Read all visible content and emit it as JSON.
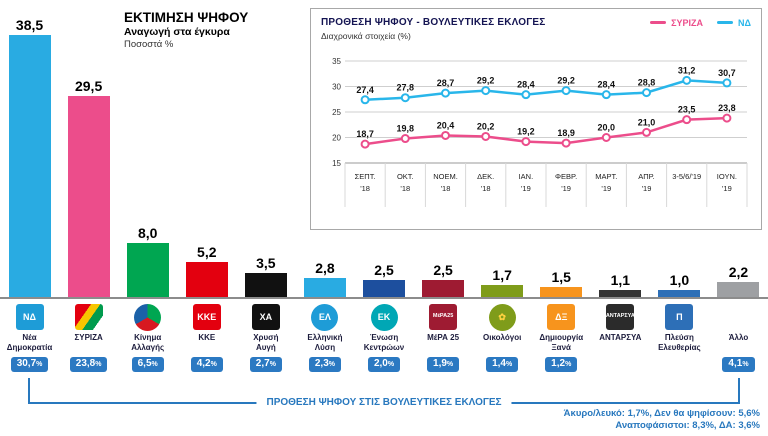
{
  "header": {
    "title": "ΕΚΤΙΜΗΣΗ ΨΗΦΟΥ",
    "subtitle": "Αναγωγή στα έγκυρα",
    "note": "Ποσοστά %"
  },
  "line_panel": {
    "title": "ΠΡΟΘΕΣΗ ΨΗΦΟΥ - ΒΟΥΛΕΥΤΙΚΕΣ ΕΚΛΟΓΕΣ",
    "subtitle": "Διαχρονικά στοιχεία (%)"
  },
  "footer": {
    "bracket_label": "ΠΡΟΘΕΣΗ ΨΗΦΟΥ ΣΤΙΣ ΒΟΥΛΕΥΤΙΚΕΣ ΕΚΛΟΓΕΣ",
    "notes": [
      "Άκυρο/λευκό: 1,7%, Δεν θα ψηφίσουν: 5,6%",
      "Αναποφάσιστοι: 8,3%, ΔΑ: 3,6%"
    ]
  },
  "colors": {
    "badge_blue": "#2b79c2",
    "bracket_blue": "#2878be",
    "nd_blue": "#29abe2",
    "syriza_pink": "#ec4d8b"
  },
  "chart_data": [
    {
      "type": "bar",
      "title": "ΕΚΤΙΜΗΣΗ ΨΗΦΟΥ",
      "ylabel": "Ποσοστά %",
      "categories": [
        "Νέα Δημοκρατία",
        "ΣΥΡΙΖΑ",
        "Κίνημα Αλλαγής",
        "ΚΚΕ",
        "Χρυσή Αυγή",
        "Ελληνική Λύση",
        "Ένωση Κεντρώων",
        "ΜέΡΑ 25",
        "Οικολόγοι",
        "Δημιουργία Ξανά",
        "ΑΝΤΑΡΣΥΑ",
        "Πλεύση Ελευθερίας",
        "Άλλο"
      ],
      "values": [
        38.5,
        29.5,
        8.0,
        5.2,
        3.5,
        2.8,
        2.5,
        2.5,
        1.7,
        1.5,
        1.1,
        1.0,
        2.2
      ],
      "bar_colors": [
        "#29abe2",
        "#ec4d8b",
        "#00a651",
        "#e3000f",
        "#111111",
        "#29abe2",
        "#1d4f9e",
        "#9e1b32",
        "#7f9c1a",
        "#f7941d",
        "#333333",
        "#2d6fb7",
        "#9ea0a3"
      ],
      "name_lines": [
        [
          "Νέα",
          "Δημοκρατία"
        ],
        [
          "ΣΥΡΙΖΑ"
        ],
        [
          "Κίνημα",
          "Αλλαγής"
        ],
        [
          "ΚΚΕ"
        ],
        [
          "Χρυσή",
          "Αυγή"
        ],
        [
          "Ελληνική",
          "Λύση"
        ],
        [
          "Ένωση",
          "Κεντρώων"
        ],
        [
          "ΜέΡΑ 25"
        ],
        [
          "Οικολόγοι"
        ],
        [
          "Δημιουργία",
          "Ξανά"
        ],
        [
          "ΑΝΤΑΡΣΥΑ"
        ],
        [
          "Πλεύση",
          "Ελευθερίας"
        ],
        [
          "Άλλο"
        ]
      ],
      "intention_badges": [
        "30,7",
        "23,8",
        "6,5",
        "4,2",
        "2,7",
        "2,3",
        "2,0",
        "1,9",
        "1,4",
        "1,2",
        null,
        null,
        "4,1"
      ],
      "logos": [
        {
          "label": "ΝΔ",
          "bg": "#1e9cd7",
          "fg": "#ffffff",
          "shape": "square"
        },
        {
          "label": "",
          "bg": "linear-gradient(125deg,#e3000f 0 35%,#f7c600 35% 55%,#009b4d 55% 78%,#ffffff 78%)",
          "fg": "#ffffff",
          "shape": "square"
        },
        {
          "label": "",
          "bg": "conic-gradient(#00a651 0 120deg,#d71920 120deg 240deg,#1b61a8 240deg 360deg)",
          "fg": "#ffffff",
          "shape": "circle"
        },
        {
          "label": "ΚΚΕ",
          "bg": "#e3000f",
          "fg": "#ffffff",
          "shape": "square"
        },
        {
          "label": "ΧΑ",
          "bg": "#111111",
          "fg": "#ffffff",
          "shape": "square"
        },
        {
          "label": "ΕΛ",
          "bg": "#1e9cd7",
          "fg": "#ffffff",
          "shape": "circle"
        },
        {
          "label": "ΕΚ",
          "bg": "#00a7b5",
          "fg": "#ffffff",
          "shape": "circle"
        },
        {
          "label": "ΜέΡΑ25",
          "bg": "#9e1b32",
          "fg": "#ffffff",
          "shape": "square",
          "small": true
        },
        {
          "label": "✿",
          "bg": "#7f9c1a",
          "fg": "#ffd23f",
          "shape": "circle"
        },
        {
          "label": "ΔΞ",
          "bg": "#f7941d",
          "fg": "#ffffff",
          "shape": "square"
        },
        {
          "label": "ΑΝΤΑΡΣΥΑ",
          "bg": "#2b2b2b",
          "fg": "#ffffff",
          "shape": "square",
          "small": true
        },
        {
          "label": "Π",
          "bg": "#2d6fb7",
          "fg": "#ffffff",
          "shape": "square"
        },
        null
      ]
    },
    {
      "type": "line",
      "title": "ΠΡΟΘΕΣΗ ΨΗΦΟΥ - ΒΟΥΛΕΥΤΙΚΕΣ ΕΚΛΟΓΕΣ",
      "subtitle": "Διαχρονικά στοιχεία (%)",
      "categories": [
        "ΣΕΠΤ. '18",
        "ΟΚΤ. '18",
        "ΝΟΕΜ. '18",
        "ΔΕΚ. '18",
        "ΙΑΝ. '19",
        "ΦΕΒΡ. '19",
        "ΜΑΡΤ. '19",
        "ΑΠΡ. '19",
        "3-5/6/'19",
        "ΙΟΥΝ. '19"
      ],
      "x_labels": [
        [
          "ΣΕΠΤ.",
          "'18"
        ],
        [
          "ΟΚΤ.",
          "'18"
        ],
        [
          "ΝΟΕΜ.",
          "'18"
        ],
        [
          "ΔΕΚ.",
          "'18"
        ],
        [
          "ΙΑΝ.",
          "'19"
        ],
        [
          "ΦΕΒΡ.",
          "'19"
        ],
        [
          "ΜΑΡΤ.",
          "'19"
        ],
        [
          "ΑΠΡ.",
          "'19"
        ],
        [
          "3-5/6/'19",
          ""
        ],
        [
          "ΙΟΥΝ.",
          "'19"
        ]
      ],
      "series": [
        {
          "name": "ΣΥΡΙΖΑ",
          "color": "#ec4d8b",
          "values": [
            18.7,
            19.8,
            20.4,
            20.2,
            19.2,
            18.9,
            20.0,
            21.0,
            23.5,
            23.8
          ]
        },
        {
          "name": "ΝΔ",
          "color": "#29b6ea",
          "values": [
            27.4,
            27.8,
            28.7,
            29.2,
            28.4,
            29.2,
            28.4,
            28.8,
            31.2,
            30.7
          ]
        }
      ],
      "ylim": [
        15,
        35
      ],
      "yticks": [
        35,
        30,
        25,
        20,
        15
      ],
      "grid": true,
      "legend_position": "top-right"
    }
  ]
}
